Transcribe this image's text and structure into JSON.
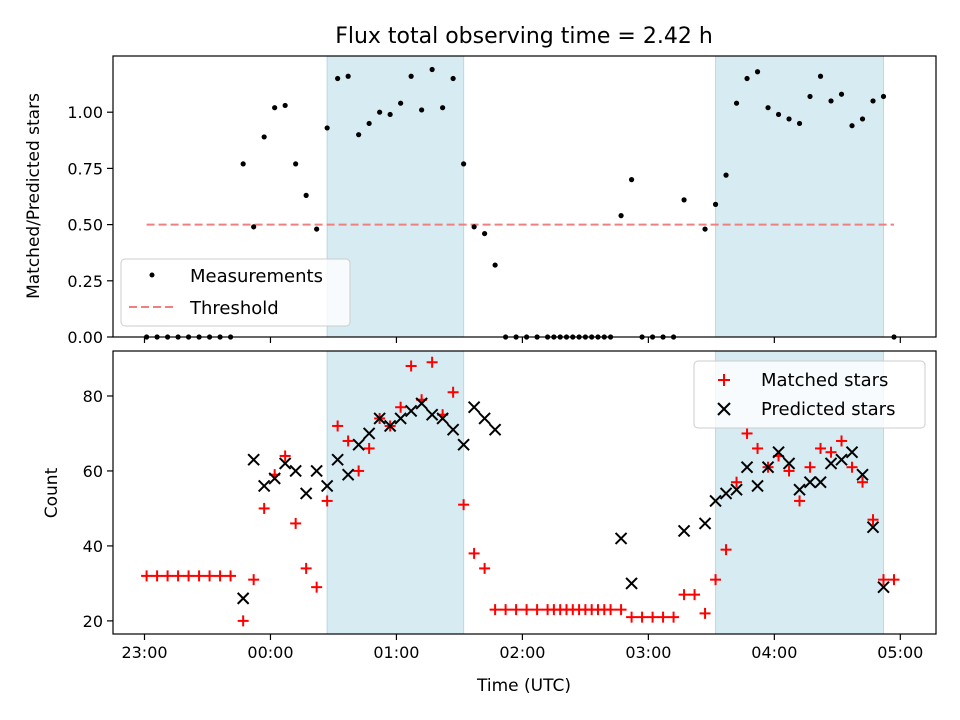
{
  "chart_data": [
    {
      "type": "scatter",
      "title": "Flux total observing time = 2.42 h",
      "ylabel": "Matched/Predicted stars",
      "xlabel": "",
      "ylim": [
        0,
        1.25
      ],
      "xlim_minutes_rel_2300": [
        -15,
        377
      ],
      "y_ticks": [
        0.0,
        0.25,
        0.5,
        0.75,
        1.0
      ],
      "y_tick_labels": [
        "0.00",
        "0.25",
        "0.50",
        "0.75",
        "1.00"
      ],
      "grid": false,
      "legend": "lower-left",
      "shaded_intervals": [
        [
          "00:27",
          "01:32"
        ],
        [
          "03:32",
          "04:52"
        ]
      ],
      "threshold": {
        "name": "Threshold",
        "value": 0.5,
        "x_from": "23:01",
        "x_to": "04:57",
        "color": "#f08080"
      },
      "series": [
        {
          "name": "Measurements",
          "color": "#000000",
          "points": [
            [
              "23:01",
              0
            ],
            [
              "23:06",
              0
            ],
            [
              "23:11",
              0
            ],
            [
              "23:16",
              0
            ],
            [
              "23:21",
              0
            ],
            [
              "23:26",
              0
            ],
            [
              "23:31",
              0
            ],
            [
              "23:36",
              0
            ],
            [
              "23:41",
              0
            ],
            [
              "23:47",
              0.77
            ],
            [
              "23:52",
              0.49
            ],
            [
              "23:57",
              0.89
            ],
            [
              "00:02",
              1.02
            ],
            [
              "00:07",
              1.03
            ],
            [
              "00:12",
              0.77
            ],
            [
              "00:17",
              0.63
            ],
            [
              "00:22",
              0.48
            ],
            [
              "00:27",
              0.93
            ],
            [
              "00:32",
              1.15
            ],
            [
              "00:37",
              1.16
            ],
            [
              "00:42",
              0.9
            ],
            [
              "00:47",
              0.95
            ],
            [
              "00:52",
              1.0
            ],
            [
              "00:57",
              0.99
            ],
            [
              "01:02",
              1.04
            ],
            [
              "01:07",
              1.16
            ],
            [
              "01:12",
              1.01
            ],
            [
              "01:17",
              1.19
            ],
            [
              "01:22",
              1.02
            ],
            [
              "01:27",
              1.15
            ],
            [
              "01:32",
              0.77
            ],
            [
              "01:37",
              0.49
            ],
            [
              "01:42",
              0.46
            ],
            [
              "01:47",
              0.32
            ],
            [
              "01:52",
              0
            ],
            [
              "01:57",
              0
            ],
            [
              "02:02",
              0
            ],
            [
              "02:07",
              0
            ],
            [
              "02:12",
              0
            ],
            [
              "02:15",
              0
            ],
            [
              "02:18",
              0
            ],
            [
              "02:21",
              0
            ],
            [
              "02:24",
              0
            ],
            [
              "02:27",
              0
            ],
            [
              "02:30",
              0
            ],
            [
              "02:33",
              0
            ],
            [
              "02:36",
              0
            ],
            [
              "02:39",
              0
            ],
            [
              "02:42",
              0
            ],
            [
              "02:47",
              0.54
            ],
            [
              "02:52",
              0.7
            ],
            [
              "02:57",
              0
            ],
            [
              "03:02",
              0
            ],
            [
              "03:07",
              0
            ],
            [
              "03:12",
              0
            ],
            [
              "03:17",
              0.61
            ],
            [
              "03:27",
              0.48
            ],
            [
              "03:32",
              0.59
            ],
            [
              "03:37",
              0.72
            ],
            [
              "03:42",
              1.04
            ],
            [
              "03:47",
              1.15
            ],
            [
              "03:52",
              1.18
            ],
            [
              "03:57",
              1.02
            ],
            [
              "04:02",
              0.99
            ],
            [
              "04:07",
              0.97
            ],
            [
              "04:12",
              0.95
            ],
            [
              "04:17",
              1.07
            ],
            [
              "04:22",
              1.16
            ],
            [
              "04:27",
              1.05
            ],
            [
              "04:32",
              1.08
            ],
            [
              "04:37",
              0.94
            ],
            [
              "04:42",
              0.97
            ],
            [
              "04:47",
              1.05
            ],
            [
              "04:52",
              1.07
            ],
            [
              "04:57",
              0
            ]
          ]
        }
      ]
    },
    {
      "type": "scatter",
      "title": "",
      "ylabel": "Count",
      "xlabel": "Time (UTC)",
      "ylim": [
        16.5,
        92
      ],
      "xlim_minutes_rel_2300": [
        -15,
        377
      ],
      "y_ticks": [
        20,
        40,
        60,
        80
      ],
      "y_tick_labels": [
        "20",
        "40",
        "60",
        "80"
      ],
      "x_ticks": [
        "23:00",
        "00:00",
        "01:00",
        "02:00",
        "03:00",
        "04:00",
        "05:00"
      ],
      "grid": false,
      "legend": "top-right",
      "shaded_intervals": [
        [
          "00:27",
          "01:32"
        ],
        [
          "03:32",
          "04:52"
        ]
      ],
      "series": [
        {
          "name": "Matched stars",
          "marker": "plus",
          "color": "#ff0000",
          "points": [
            [
              "23:01",
              32
            ],
            [
              "23:06",
              32
            ],
            [
              "23:11",
              32
            ],
            [
              "23:16",
              32
            ],
            [
              "23:21",
              32
            ],
            [
              "23:26",
              32
            ],
            [
              "23:31",
              32
            ],
            [
              "23:36",
              32
            ],
            [
              "23:41",
              32
            ],
            [
              "23:47",
              20
            ],
            [
              "23:52",
              31
            ],
            [
              "23:57",
              50
            ],
            [
              "00:02",
              59
            ],
            [
              "00:07",
              64
            ],
            [
              "00:12",
              46
            ],
            [
              "00:17",
              34
            ],
            [
              "00:22",
              29
            ],
            [
              "00:27",
              52
            ],
            [
              "00:32",
              72
            ],
            [
              "00:37",
              68
            ],
            [
              "00:42",
              60
            ],
            [
              "00:47",
              66
            ],
            [
              "00:52",
              74
            ],
            [
              "00:57",
              72
            ],
            [
              "01:02",
              77
            ],
            [
              "01:07",
              88
            ],
            [
              "01:12",
              79
            ],
            [
              "01:17",
              89
            ],
            [
              "01:22",
              75
            ],
            [
              "01:27",
              81
            ],
            [
              "01:32",
              51
            ],
            [
              "01:37",
              38
            ],
            [
              "01:42",
              34
            ],
            [
              "01:47",
              23
            ],
            [
              "01:52",
              23
            ],
            [
              "01:57",
              23
            ],
            [
              "02:02",
              23
            ],
            [
              "02:07",
              23
            ],
            [
              "02:12",
              23
            ],
            [
              "02:15",
              23
            ],
            [
              "02:18",
              23
            ],
            [
              "02:21",
              23
            ],
            [
              "02:24",
              23
            ],
            [
              "02:27",
              23
            ],
            [
              "02:30",
              23
            ],
            [
              "02:33",
              23
            ],
            [
              "02:36",
              23
            ],
            [
              "02:39",
              23
            ],
            [
              "02:42",
              23
            ],
            [
              "02:47",
              23
            ],
            [
              "02:52",
              21
            ],
            [
              "02:57",
              21
            ],
            [
              "03:02",
              21
            ],
            [
              "03:07",
              21
            ],
            [
              "03:12",
              21
            ],
            [
              "03:17",
              27
            ],
            [
              "03:22",
              27
            ],
            [
              "03:27",
              22
            ],
            [
              "03:32",
              31
            ],
            [
              "03:37",
              39
            ],
            [
              "03:42",
              57
            ],
            [
              "03:47",
              70
            ],
            [
              "03:52",
              66
            ],
            [
              "03:57",
              61
            ],
            [
              "04:02",
              64
            ],
            [
              "04:07",
              60
            ],
            [
              "04:12",
              52
            ],
            [
              "04:17",
              61
            ],
            [
              "04:22",
              66
            ],
            [
              "04:27",
              65
            ],
            [
              "04:32",
              68
            ],
            [
              "04:37",
              61
            ],
            [
              "04:42",
              57
            ],
            [
              "04:47",
              47
            ],
            [
              "04:52",
              31
            ],
            [
              "04:57",
              31
            ]
          ]
        },
        {
          "name": "Predicted stars",
          "marker": "x",
          "color": "#000000",
          "points": [
            [
              "23:47",
              26
            ],
            [
              "23:52",
              63
            ],
            [
              "23:57",
              56
            ],
            [
              "00:02",
              58
            ],
            [
              "00:07",
              62
            ],
            [
              "00:12",
              60
            ],
            [
              "00:17",
              54
            ],
            [
              "00:22",
              60
            ],
            [
              "00:27",
              56
            ],
            [
              "00:32",
              63
            ],
            [
              "00:37",
              59
            ],
            [
              "00:42",
              67
            ],
            [
              "00:47",
              70
            ],
            [
              "00:52",
              74
            ],
            [
              "00:57",
              72
            ],
            [
              "01:02",
              74
            ],
            [
              "01:07",
              76
            ],
            [
              "01:12",
              78
            ],
            [
              "01:17",
              75
            ],
            [
              "01:22",
              74
            ],
            [
              "01:27",
              71
            ],
            [
              "01:32",
              67
            ],
            [
              "01:37",
              77
            ],
            [
              "01:42",
              74
            ],
            [
              "01:47",
              71
            ],
            [
              "02:47",
              42
            ],
            [
              "02:52",
              30
            ],
            [
              "03:17",
              44
            ],
            [
              "03:27",
              46
            ],
            [
              "03:32",
              52
            ],
            [
              "03:37",
              54
            ],
            [
              "03:42",
              55
            ],
            [
              "03:47",
              61
            ],
            [
              "03:52",
              56
            ],
            [
              "03:57",
              61
            ],
            [
              "04:02",
              65
            ],
            [
              "04:07",
              62
            ],
            [
              "04:12",
              55
            ],
            [
              "04:17",
              57
            ],
            [
              "04:22",
              57
            ],
            [
              "04:27",
              62
            ],
            [
              "04:32",
              63
            ],
            [
              "04:37",
              65
            ],
            [
              "04:42",
              59
            ],
            [
              "04:47",
              45
            ],
            [
              "04:52",
              29
            ]
          ]
        }
      ]
    }
  ]
}
